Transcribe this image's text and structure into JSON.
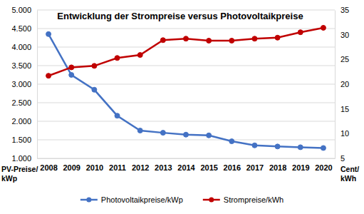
{
  "chart_data": {
    "type": "line",
    "title": "Entwicklung der Strompreise versus Photovoltaikpreise",
    "ylabel": [
      "PV-Preise/",
      "kWp"
    ],
    "y2label": [
      "Cent/",
      "kWh"
    ],
    "categories": [
      "2008",
      "2009",
      "2010",
      "2011",
      "2012",
      "2013",
      "2014",
      "2015",
      "2016",
      "2017",
      "2018",
      "2019",
      "2020"
    ],
    "series": [
      {
        "name": "Photovoltaikpreise/kWp",
        "color": "#4472c4",
        "marker": "circle",
        "line_style": "solid",
        "values": [
          4350,
          3250,
          2850,
          2150,
          1750,
          1690,
          1640,
          1620,
          1460,
          1350,
          1320,
          1300,
          1280
        ]
      },
      {
        "name": "Strompreise/kWh",
        "color": "#c00000",
        "marker": "circle",
        "line_style": "solid",
        "axis": "y2",
        "values": [
          21.7,
          23.4,
          23.7,
          25.3,
          25.9,
          28.9,
          29.2,
          28.8,
          28.8,
          29.2,
          29.4,
          30.5,
          31.4
        ]
      }
    ],
    "ylim": [
      1000,
      5000
    ],
    "yticks": [
      {
        "value": 1000,
        "label": "1.000"
      },
      {
        "value": 1500,
        "label": "1.500"
      },
      {
        "value": 2000,
        "label": "2.000"
      },
      {
        "value": 2500,
        "label": "2.500"
      },
      {
        "value": 3000,
        "label": "3.000"
      },
      {
        "value": 3500,
        "label": "3.500"
      },
      {
        "value": 4000,
        "label": "4.000"
      },
      {
        "value": 4500,
        "label": "4.500"
      },
      {
        "value": 5000,
        "label": "5.000"
      }
    ],
    "y2lim": [
      5,
      35
    ],
    "y2ticks": [
      5,
      10,
      15,
      20,
      25,
      30,
      35
    ],
    "grid": true,
    "legend": "bottom"
  }
}
